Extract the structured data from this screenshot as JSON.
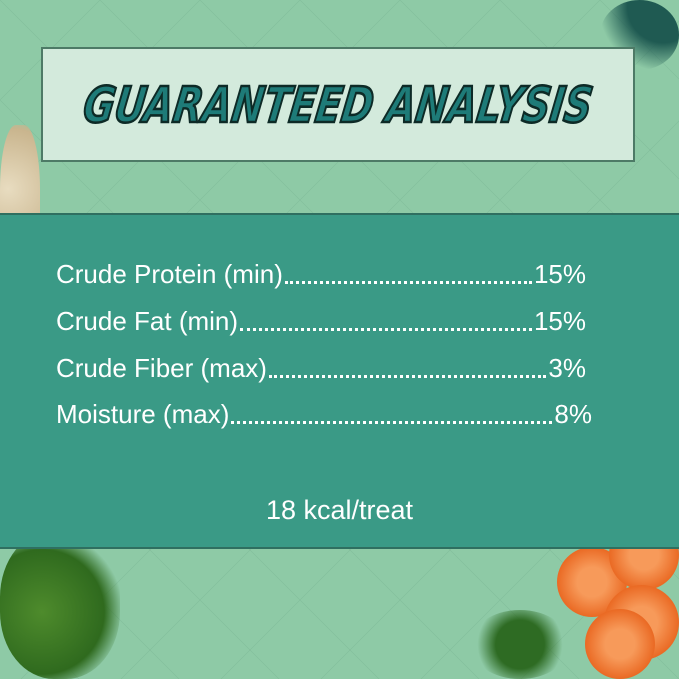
{
  "title": "Guaranteed Analysis",
  "analysis": [
    {
      "label": "Crude Protein (min)",
      "value": "15%"
    },
    {
      "label": "Crude Fat (min)",
      "value": "15%"
    },
    {
      "label": "Crude Fiber (max)",
      "value": "3%"
    },
    {
      "label": "Moisture (max)",
      "value": "8%"
    }
  ],
  "calories": "18 kcal/treat",
  "colors": {
    "background": "#8ecaa6",
    "panel": "#3a9a86",
    "title_box": "#d3eadc",
    "title_text": "#1e7b78"
  }
}
